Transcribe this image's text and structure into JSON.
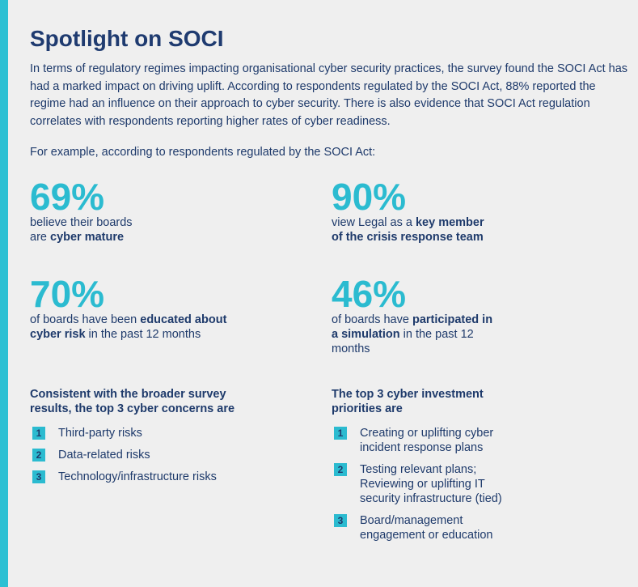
{
  "title": "Spotlight on SOCI",
  "intro": "In terms of regulatory regimes impacting organisational cyber security practices, the survey found the SOCI Act has had a marked impact on driving uplift. According to respondents regulated by the SOCI Act, 88% reported the regime had an influence on their approach to cyber security. There is also evidence that SOCI Act regulation correlates with respondents reporting higher rates of cyber  readiness.",
  "lead": "For example, according to respondents regulated by the SOCI Act:",
  "stats": [
    {
      "figure": "69%",
      "segments": [
        {
          "text": "believe their boards are "
        },
        {
          "text": "cyber mature",
          "strong": true
        }
      ]
    },
    {
      "figure": "90%",
      "segments": [
        {
          "text": "view Legal as a "
        },
        {
          "text": "key member of the crisis response team",
          "strong": true
        }
      ]
    },
    {
      "figure": "70%",
      "segments": [
        {
          "text": "of boards have been "
        },
        {
          "text": "educated about cyber risk",
          "strong": true
        },
        {
          "text": " in the past 12 months"
        }
      ]
    },
    {
      "figure": "46%",
      "segments": [
        {
          "text": "of boards have "
        },
        {
          "text": "participated in a simulation",
          "strong": true
        },
        {
          "text": " in the past 12 months"
        }
      ]
    }
  ],
  "concerns": {
    "heading": "Consistent with the broader survey results, the top 3 cyber concerns are",
    "items": [
      {
        "number": "1",
        "text": "Third-party risks"
      },
      {
        "number": "2",
        "text": "Data-related risks"
      },
      {
        "number": "3",
        "text": "Technology/infrastructure risks"
      }
    ]
  },
  "priorities": {
    "heading": "The top 3 cyber investment priorities are",
    "items": [
      {
        "number": "1",
        "text": "Creating or uplifting cyber incident response plans"
      },
      {
        "number": "2",
        "text": "Testing relevant plans; Reviewing or uplifting IT security infrastructure (tied)"
      },
      {
        "number": "3",
        "text": "Board/management engagement or education"
      }
    ]
  }
}
